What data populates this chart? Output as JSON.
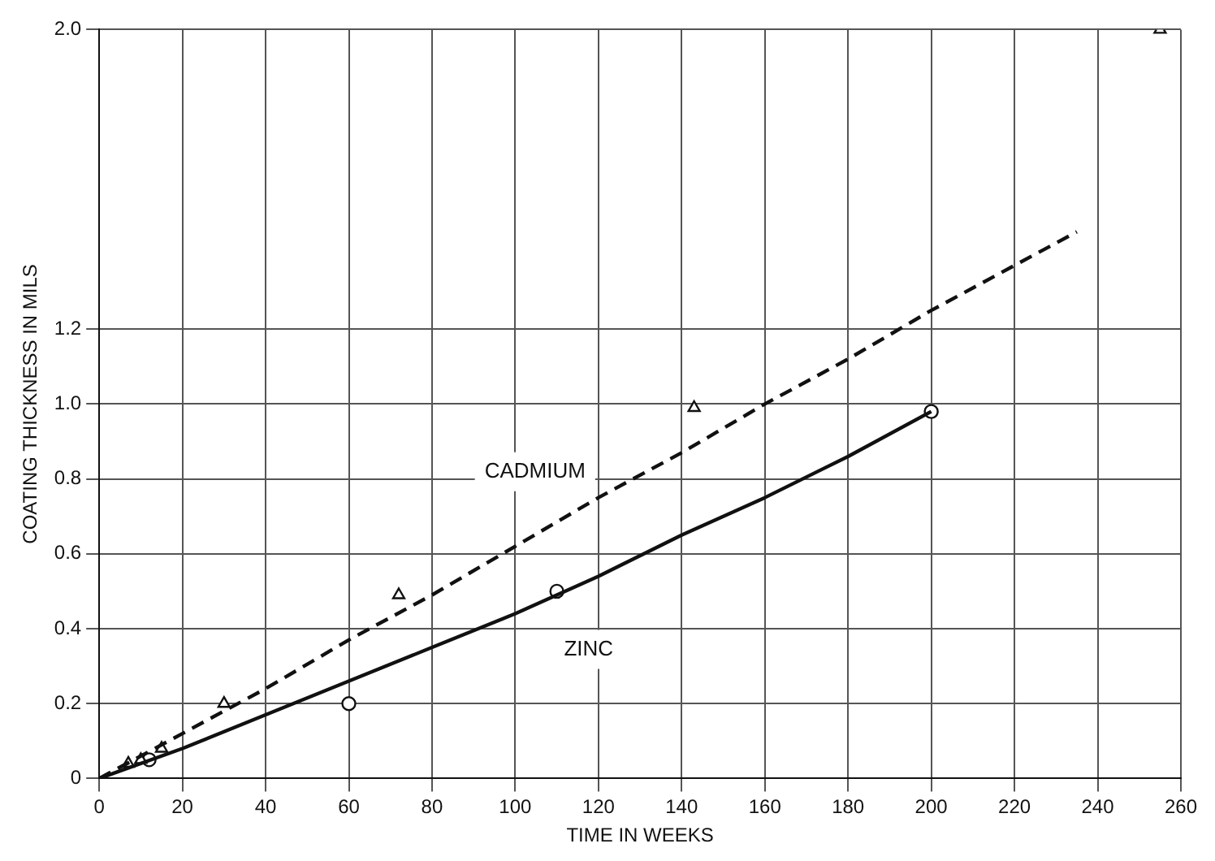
{
  "chart_data": {
    "type": "line",
    "xlabel": "TIME IN WEEKS",
    "ylabel": "COATING THICKNESS IN MILS",
    "xlim": [
      0,
      260
    ],
    "xticks": [
      0,
      20,
      40,
      60,
      80,
      100,
      120,
      140,
      160,
      180,
      200,
      220,
      240,
      260
    ],
    "ylim": [
      0,
      2.0
    ],
    "yticks": [
      {
        "value": 0,
        "label": "0"
      },
      0.2,
      0.4,
      0.6,
      0.8,
      {
        "value": 1,
        "label": "1.0"
      },
      1.2,
      {
        "value": 2,
        "label": "2.0"
      }
    ],
    "grid": true,
    "legend": false,
    "series": [
      {
        "name": "CADMIUM",
        "line_style": "dashed",
        "marker": "none",
        "color": "#111111",
        "x": [
          0,
          20,
          40,
          60,
          80,
          100,
          120,
          140,
          160,
          180,
          200,
          235
        ],
        "values": [
          0,
          0.12,
          0.24,
          0.37,
          0.49,
          0.62,
          0.75,
          0.87,
          1.0,
          1.12,
          1.25,
          1.46
        ]
      },
      {
        "name": "ZINC",
        "line_style": "solid",
        "marker": "none",
        "color": "#111111",
        "x": [
          0,
          20,
          40,
          60,
          80,
          100,
          120,
          140,
          160,
          180,
          200
        ],
        "values": [
          0,
          0.08,
          0.17,
          0.26,
          0.35,
          0.44,
          0.54,
          0.65,
          0.75,
          0.86,
          0.98
        ]
      },
      {
        "type": "scatter",
        "marker": "triangle",
        "color": "#111111",
        "x": [
          7,
          10,
          15,
          30,
          72,
          143,
          255
        ],
        "values": [
          0.04,
          0.05,
          0.08,
          0.2,
          0.49,
          0.99,
          2.0
        ]
      },
      {
        "type": "scatter",
        "marker": "circle",
        "color": "#111111",
        "x": [
          12,
          60,
          110,
          200
        ],
        "values": [
          0.05,
          0.2,
          0.5,
          0.98
        ]
      }
    ]
  }
}
